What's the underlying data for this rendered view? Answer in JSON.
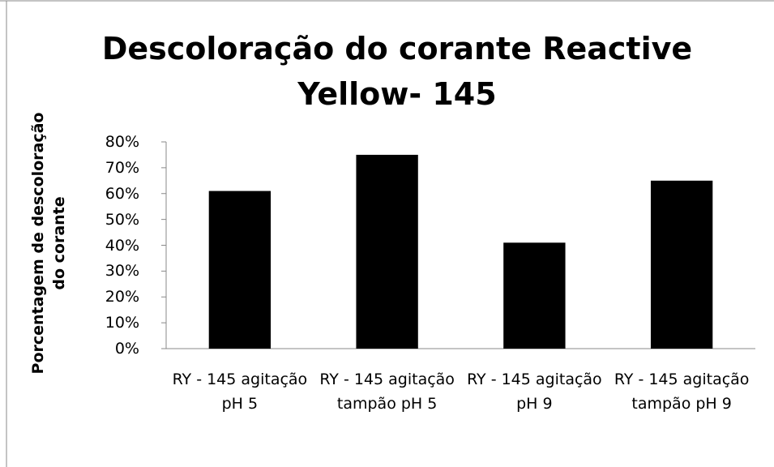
{
  "chart_data": {
    "type": "bar",
    "title": "Descoloração do corante Reactive Yellow- 145",
    "y_label": "Porcentagem de descoloração do corante",
    "categories": [
      "RY - 145 agitação pH 5",
      "RY - 145 agitação tampão pH 5",
      "RY - 145 agitação pH 9",
      "RY - 145 agitação tampão pH 9"
    ],
    "values": [
      61,
      75,
      41,
      65
    ],
    "color": "#000000",
    "ylim": [
      0,
      80
    ],
    "yticks": [
      {
        "value": 0,
        "label": "0%"
      },
      {
        "value": 10,
        "label": "10%"
      },
      {
        "value": 20,
        "label": "20%"
      },
      {
        "value": 30,
        "label": "30%"
      },
      {
        "value": 40,
        "label": "40%"
      },
      {
        "value": 50,
        "label": "50%"
      },
      {
        "value": 60,
        "label": "60%"
      },
      {
        "value": 70,
        "label": "70%"
      },
      {
        "value": 80,
        "label": "80%"
      }
    ],
    "grid": false
  }
}
